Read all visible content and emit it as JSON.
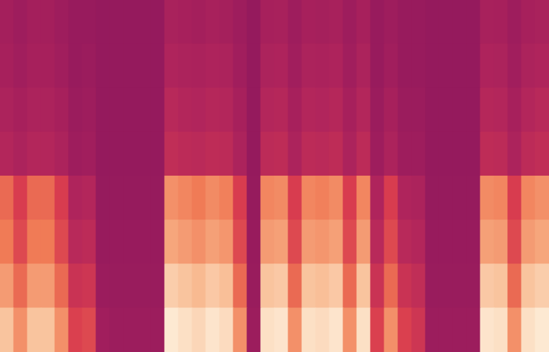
{
  "chart_data": {
    "type": "heatmap",
    "tick_labels": false,
    "cells": [
      [
        28,
        24,
        28,
        28,
        24,
        20,
        20,
        18,
        18,
        18,
        18,
        18,
        32,
        30,
        28,
        31,
        29,
        24,
        18,
        30,
        31,
        24,
        30,
        29,
        31,
        24,
        30,
        20,
        24,
        20,
        20,
        18,
        18,
        18,
        18,
        31,
        30,
        24,
        30,
        32
      ],
      [
        30,
        26,
        30,
        30,
        26,
        20,
        22,
        18,
        18,
        18,
        18,
        18,
        36,
        34,
        33,
        35,
        34,
        26,
        18,
        34,
        35,
        26,
        34,
        33,
        35,
        26,
        34,
        20,
        26,
        20,
        20,
        18,
        18,
        18,
        18,
        35,
        34,
        26,
        34,
        36
      ],
      [
        34,
        30,
        34,
        34,
        30,
        22,
        24,
        18,
        18,
        18,
        18,
        18,
        40,
        38,
        37,
        39,
        38,
        30,
        18,
        38,
        39,
        30,
        38,
        37,
        39,
        30,
        38,
        22,
        30,
        22,
        22,
        18,
        18,
        18,
        18,
        39,
        38,
        30,
        38,
        40
      ],
      [
        38,
        34,
        38,
        38,
        34,
        24,
        26,
        18,
        18,
        18,
        18,
        18,
        44,
        42,
        41,
        43,
        42,
        34,
        18,
        42,
        43,
        34,
        42,
        41,
        43,
        34,
        42,
        24,
        34,
        24,
        24,
        18,
        18,
        18,
        18,
        43,
        42,
        34,
        42,
        44
      ],
      [
        66,
        55,
        66,
        66,
        55,
        36,
        38,
        19,
        19,
        19,
        19,
        19,
        74,
        72,
        70,
        73,
        71,
        55,
        19,
        72,
        73,
        55,
        72,
        71,
        73,
        55,
        72,
        36,
        55,
        36,
        34,
        19,
        19,
        19,
        19,
        73,
        72,
        55,
        72,
        74
      ],
      [
        70,
        58,
        70,
        70,
        58,
        40,
        42,
        20,
        20,
        20,
        20,
        20,
        78,
        76,
        74,
        77,
        75,
        58,
        20,
        76,
        77,
        58,
        76,
        75,
        77,
        58,
        76,
        40,
        58,
        40,
        38,
        20,
        20,
        20,
        20,
        77,
        76,
        58,
        76,
        78
      ],
      [
        76,
        66,
        76,
        76,
        66,
        48,
        50,
        22,
        21,
        21,
        21,
        21,
        86,
        84,
        82,
        85,
        83,
        66,
        21,
        84,
        85,
        66,
        84,
        83,
        85,
        66,
        84,
        48,
        66,
        48,
        44,
        21,
        21,
        21,
        21,
        85,
        84,
        66,
        84,
        86
      ],
      [
        84,
        74,
        84,
        84,
        74,
        56,
        58,
        26,
        23,
        23,
        23,
        23,
        92,
        90,
        88,
        91,
        89,
        74,
        23,
        90,
        91,
        74,
        90,
        89,
        91,
        74,
        90,
        56,
        74,
        56,
        50,
        23,
        23,
        23,
        23,
        91,
        90,
        74,
        90,
        92
      ]
    ]
  }
}
